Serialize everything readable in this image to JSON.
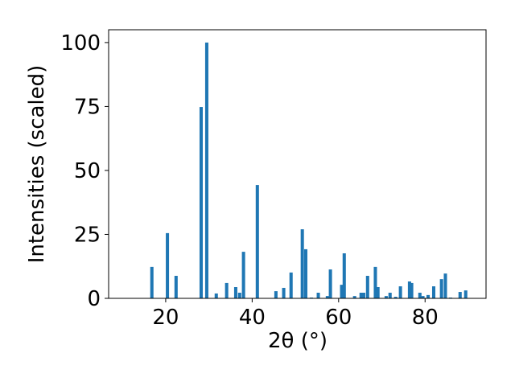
{
  "chart_data": {
    "type": "bar",
    "xlabel": "2θ (°)",
    "ylabel": "Intensities (scaled)",
    "x": [
      16.8,
      20.4,
      22.4,
      28.2,
      29.5,
      31.7,
      34.1,
      36.2,
      37.1,
      38.0,
      41.2,
      45.5,
      47.3,
      49.0,
      51.6,
      52.4,
      53.7,
      55.3,
      57.4,
      58.1,
      60.7,
      61.3,
      63.7,
      65.2,
      65.8,
      66.7,
      68.5,
      69.1,
      71.0,
      71.9,
      73.2,
      74.3,
      76.4,
      76.9,
      78.8,
      79.5,
      80.7,
      82.0,
      83.8,
      84.7,
      85.9,
      88.1,
      89.4
    ],
    "values": [
      12.3,
      25.5,
      8.8,
      74.8,
      100,
      1.9,
      6.0,
      4.4,
      2.2,
      18.2,
      44.3,
      2.8,
      4.1,
      10.1,
      27.0,
      19.2,
      0.3,
      2.2,
      0.9,
      11.3,
      5.3,
      17.6,
      0.9,
      2.2,
      2.2,
      8.8,
      12.3,
      4.4,
      0.9,
      2.2,
      0.6,
      4.7,
      6.6,
      6.0,
      2.2,
      0.9,
      1.3,
      4.7,
      7.5,
      9.7,
      0.3,
      2.5,
      3.1
    ],
    "color": "#1f77b4",
    "xlim": [
      6.8,
      94.1
    ],
    "xticks": [
      20,
      40,
      60,
      80
    ],
    "ylim": [
      0,
      105
    ],
    "yticks": [
      0,
      25,
      50,
      75,
      100
    ],
    "grid": false
  }
}
